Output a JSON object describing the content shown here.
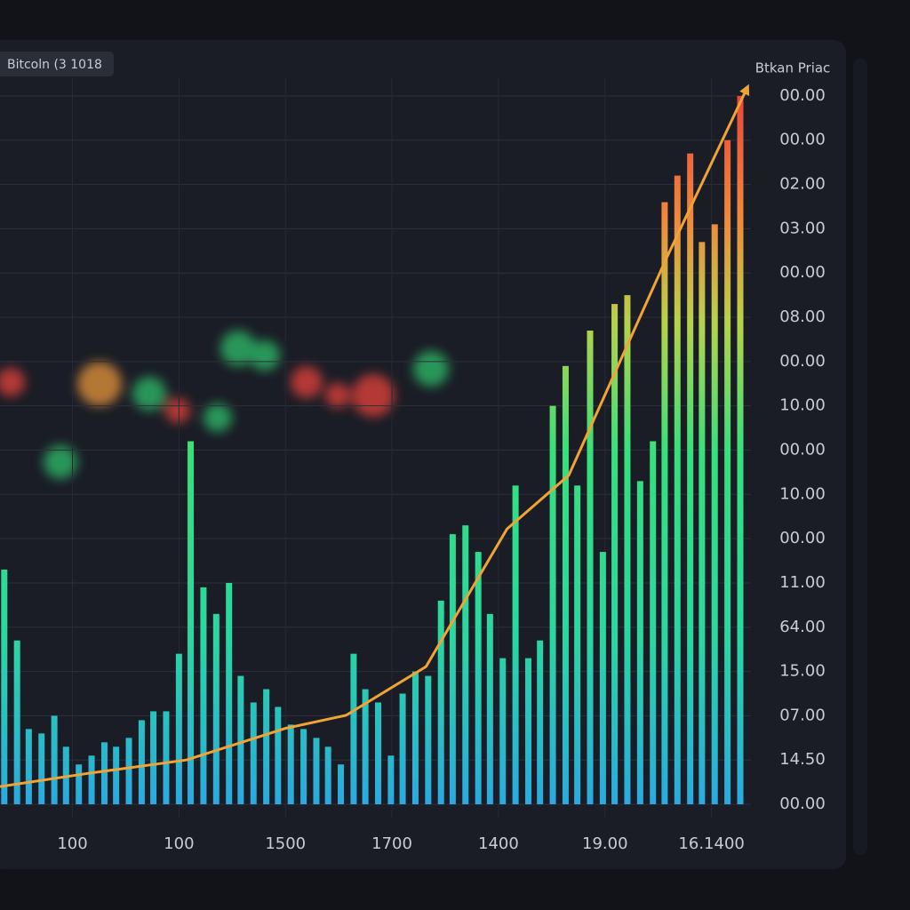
{
  "chart_data": {
    "type": "bar",
    "title": "Bitcoln (3 1018",
    "y_label": "Btkan Priac",
    "xlim": [
      0.32,
      7.37
    ],
    "xticks": [
      {
        "value": 1,
        "label": "100"
      },
      {
        "value": 2,
        "label": "100"
      },
      {
        "value": 3,
        "label": "1500"
      },
      {
        "value": 4,
        "label": "1700"
      },
      {
        "value": 5,
        "label": "1400"
      },
      {
        "value": 6,
        "label": "19.00"
      },
      {
        "value": 7,
        "label": "16.1400"
      }
    ],
    "ylim": [
      -0.3,
      16.4
    ],
    "yticks": [
      {
        "value": 0,
        "label": "00.00"
      },
      {
        "value": 1,
        "label": "14.50"
      },
      {
        "value": 2,
        "label": "07.00"
      },
      {
        "value": 3,
        "label": "15.00"
      },
      {
        "value": 4,
        "label": "64.00"
      },
      {
        "value": 5,
        "label": "11.00"
      },
      {
        "value": 6,
        "label": "00.00"
      },
      {
        "value": 7,
        "label": "10.00"
      },
      {
        "value": 8,
        "label": "00.00"
      },
      {
        "value": 9,
        "label": "10.00"
      },
      {
        "value": 10,
        "label": "00.00"
      },
      {
        "value": 11,
        "label": "08.00"
      },
      {
        "value": 12,
        "label": "00.00"
      },
      {
        "value": 13,
        "label": "03.00"
      },
      {
        "value": 14,
        "label": "02.00"
      },
      {
        "value": 15,
        "label": "00.00"
      },
      {
        "value": 16,
        "label": "00.00"
      }
    ],
    "grid": true,
    "x": [
      0.36,
      0.48,
      0.59,
      0.71,
      0.83,
      0.94,
      1.06,
      1.18,
      1.3,
      1.41,
      1.53,
      1.65,
      1.76,
      1.88,
      2.0,
      2.11,
      2.23,
      2.35,
      2.47,
      2.58,
      2.7,
      2.82,
      2.93,
      3.05,
      3.17,
      3.29,
      3.4,
      3.52,
      3.64,
      3.75,
      3.87,
      3.99,
      4.1,
      4.22,
      4.34,
      4.46,
      4.57,
      4.69,
      4.81,
      4.92,
      5.04,
      5.16,
      5.28,
      5.39,
      5.51,
      5.63,
      5.74,
      5.86,
      5.98,
      6.09,
      6.21,
      6.33,
      6.45,
      6.56,
      6.68,
      6.8,
      6.91,
      7.03,
      7.15,
      7.27
    ],
    "values": [
      5.3,
      3.7,
      1.7,
      1.6,
      2.0,
      1.3,
      0.9,
      1.1,
      1.4,
      1.3,
      1.5,
      1.9,
      2.1,
      2.1,
      3.4,
      8.2,
      4.9,
      4.3,
      5.0,
      2.9,
      2.3,
      2.6,
      2.2,
      1.8,
      1.7,
      1.5,
      1.3,
      0.9,
      3.4,
      2.6,
      2.3,
      1.1,
      2.5,
      3.0,
      2.9,
      4.6,
      6.1,
      6.3,
      5.7,
      4.3,
      3.3,
      7.2,
      3.3,
      3.7,
      9.0,
      9.9,
      7.2,
      10.7,
      5.7,
      11.3,
      11.5,
      7.3,
      8.2,
      13.6,
      14.2,
      14.7,
      12.7,
      13.1,
      15.0,
      16.0
    ],
    "trend": {
      "color": "#f0a436",
      "x": [
        0.32,
        1.15,
        2.07,
        2.99,
        3.57,
        4.32,
        5.08,
        5.66,
        6.58,
        7.33
      ],
      "values": [
        0.4,
        0.7,
        1.0,
        1.71,
        2.01,
        3.11,
        6.22,
        7.43,
        12.35,
        16.16
      ]
    }
  }
}
